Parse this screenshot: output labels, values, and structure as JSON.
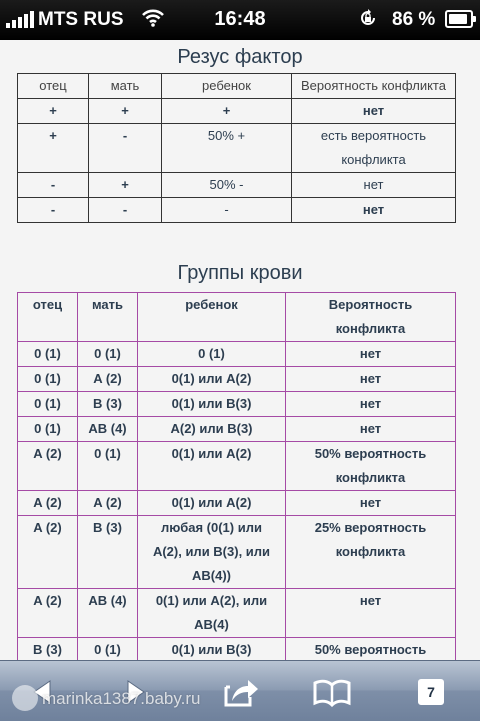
{
  "status_bar": {
    "carrier": "MTS RUS",
    "time": "16:48",
    "battery": "86 %"
  },
  "rhesus": {
    "title": "Резус фактор",
    "headers": [
      "отец",
      "мать",
      "ребенок",
      "Вероятность конфликта"
    ],
    "rows": [
      [
        "+",
        "+",
        "+",
        "нет"
      ],
      [
        "+",
        "-",
        "50% +",
        "есть вероятность конфликта"
      ],
      [
        "-",
        "+",
        "50% -",
        "нет"
      ],
      [
        "-",
        "-",
        "-",
        "нет"
      ]
    ]
  },
  "blood_groups": {
    "title": "Группы крови",
    "headers": [
      "отец",
      "мать",
      "ребенок",
      "Вероятность конфликта"
    ],
    "rows": [
      [
        "0 (1)",
        "0 (1)",
        "0 (1)",
        "нет"
      ],
      [
        "0 (1)",
        "A (2)",
        "0(1) или A(2)",
        "нет"
      ],
      [
        "0 (1)",
        "B (3)",
        "0(1) или B(3)",
        "нет"
      ],
      [
        "0 (1)",
        "AB (4)",
        "A(2) или B(3)",
        "нет"
      ],
      [
        "A (2)",
        "0 (1)",
        "0(1) или A(2)",
        "50% вероятность конфликта"
      ],
      [
        "A (2)",
        "A (2)",
        "0(1) или A(2)",
        "нет"
      ],
      [
        "A (2)",
        "B (3)",
        "любая (0(1) или A(2), или B(3), или AB(4))",
        "25% вероятность конфликта"
      ],
      [
        "A (2)",
        "AB (4)",
        "0(1) или A(2), или AB(4)",
        "нет"
      ],
      [
        "B (3)",
        "0 (1)",
        "0(1) или B(3)",
        "50% вероятность"
      ]
    ]
  },
  "toolbar": {
    "watermark": "marinka1387.baby.ru",
    "tabs_count": "7",
    "icons": [
      "back-icon",
      "forward-icon",
      "share-icon",
      "bookmarks-icon",
      "tabs-icon"
    ]
  }
}
